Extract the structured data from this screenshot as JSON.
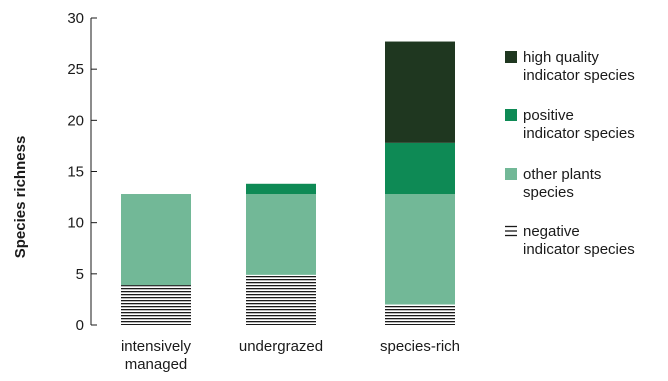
{
  "chart_data": {
    "type": "bar",
    "stacked": true,
    "title": "",
    "xlabel": "",
    "ylabel": "Species richness",
    "ylim": [
      0,
      30
    ],
    "yticks": [
      0,
      5,
      10,
      15,
      20,
      25,
      30
    ],
    "grid": false,
    "legend_position": "right",
    "categories": [
      {
        "lines": [
          "intensively",
          "managed"
        ]
      },
      {
        "lines": [
          "undergrazed"
        ]
      },
      {
        "lines": [
          "species-rich"
        ]
      }
    ],
    "series": [
      {
        "key": "negative",
        "legend_lines": [
          "negative",
          "indicator species"
        ],
        "color": "#1a1a1a",
        "pattern": "horizontal-stripes",
        "values": [
          3.9,
          4.9,
          2.0
        ]
      },
      {
        "key": "other",
        "legend_lines": [
          "other plants",
          "species"
        ],
        "color": "#72b897",
        "pattern": "solid",
        "values": [
          8.9,
          7.9,
          10.8
        ]
      },
      {
        "key": "positive",
        "legend_lines": [
          "positive",
          "indicator species"
        ],
        "color": "#0e8a55",
        "pattern": "solid",
        "values": [
          0,
          1.0,
          5.0
        ]
      },
      {
        "key": "high",
        "legend_lines": [
          "high quality",
          "indicator species"
        ],
        "color": "#1f3720",
        "pattern": "solid",
        "values": [
          0,
          0,
          9.9
        ]
      }
    ],
    "legend_order": [
      "high",
      "positive",
      "other",
      "negative"
    ]
  }
}
